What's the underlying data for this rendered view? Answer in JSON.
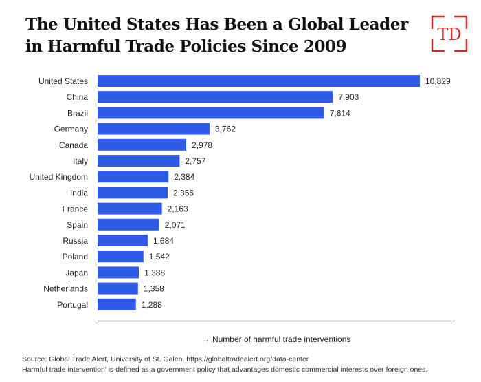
{
  "title_line1": "The United States Has Been a Global Leader",
  "title_line2": "in Harmful Trade Policies Since 2009",
  "logo_text": "TD",
  "footer": {
    "source": "Source: Global Trade Alert, University of St. Galen. https://globaltradealert.org/data-center",
    "definition": "Harmful trade intervention' is defined as a government policy that advantages domestic commercial interests over foreign ones."
  },
  "colors": {
    "bar": "#2f5ce6",
    "logo": "#cc2b2b",
    "axis": "#222222"
  },
  "chart_data": {
    "type": "bar",
    "orientation": "horizontal",
    "title": "The United States Has Been a Global Leader in Harmful Trade Policies Since 2009",
    "xlabel": "→ Number of harmful trade interventions",
    "ylabel": "",
    "categories": [
      "United States",
      "China",
      "Brazil",
      "Germany",
      "Canada",
      "Italy",
      "United Kingdom",
      "India",
      "France",
      "Spain",
      "Russia",
      "Poland",
      "Japan",
      "Netherlands",
      "Portugal"
    ],
    "values": [
      10829,
      7903,
      7614,
      3762,
      2978,
      2757,
      2384,
      2356,
      2163,
      2071,
      1684,
      1542,
      1388,
      1358,
      1288
    ],
    "value_labels": [
      "10,829",
      "7,903",
      "7,614",
      "3,762",
      "2,978",
      "2,757",
      "2,384",
      "2,356",
      "2,163",
      "2,071",
      "1,684",
      "1,542",
      "1,388",
      "1,358",
      "1,288"
    ],
    "xlim": [
      0,
      10829
    ],
    "grid": false,
    "legend": "none"
  }
}
